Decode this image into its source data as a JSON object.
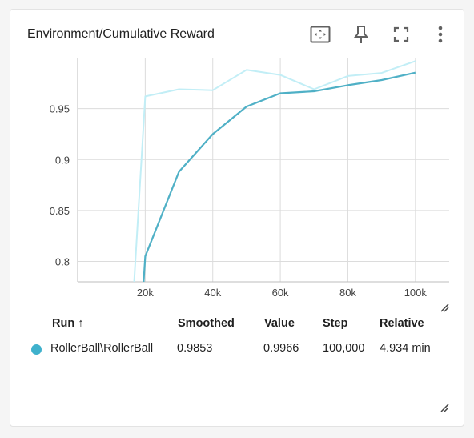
{
  "card": {
    "title": "Environment/Cumulative Reward",
    "icons": [
      "fit-domain-icon",
      "pin-icon",
      "fullscreen-icon",
      "more-vert-icon"
    ]
  },
  "chart_data": {
    "type": "line",
    "x": [
      16000,
      18000,
      20000,
      30000,
      40000,
      50000,
      60000,
      70000,
      80000,
      90000,
      100000
    ],
    "xticks": [
      20000,
      40000,
      60000,
      80000,
      100000
    ],
    "xtick_labels": [
      "20k",
      "40k",
      "60k",
      "80k",
      "100k"
    ],
    "yticks": [
      0.8,
      0.85,
      0.9,
      0.95
    ],
    "ytick_labels": [
      "0.8",
      "0.85",
      "0.9",
      "0.95"
    ],
    "xlim": [
      0,
      110000
    ],
    "ylim": [
      0.78,
      1.0
    ],
    "grid": true,
    "series": [
      {
        "name": "",
        "role": "raw",
        "color": "#c2eef6",
        "points": [
          [
            16000,
            0.74
          ],
          [
            20000,
            0.962
          ],
          [
            30000,
            0.969
          ],
          [
            40000,
            0.968
          ],
          [
            50000,
            0.988
          ],
          [
            60000,
            0.983
          ],
          [
            70000,
            0.969
          ],
          [
            80000,
            0.982
          ],
          [
            90000,
            0.985
          ],
          [
            100000,
            0.9966
          ]
        ]
      },
      {
        "name": "",
        "role": "smoothed",
        "color": "#4fb0c6",
        "points": [
          [
            18000,
            0.7
          ],
          [
            20000,
            0.805
          ],
          [
            30000,
            0.888
          ],
          [
            40000,
            0.925
          ],
          [
            50000,
            0.952
          ],
          [
            60000,
            0.965
          ],
          [
            70000,
            0.967
          ],
          [
            80000,
            0.973
          ],
          [
            90000,
            0.978
          ],
          [
            100000,
            0.9853
          ]
        ]
      }
    ]
  },
  "table": {
    "headers": {
      "run": "Run ↑",
      "smoothed": "Smoothed",
      "value": "Value",
      "step": "Step",
      "relative": "Relative"
    },
    "rows": [
      {
        "color": "#3fb1cc",
        "run": "RollerBall\\RollerBall",
        "smoothed": "0.9853",
        "value": "0.9966",
        "step": "100,000",
        "relative": "4.934 min"
      }
    ]
  }
}
